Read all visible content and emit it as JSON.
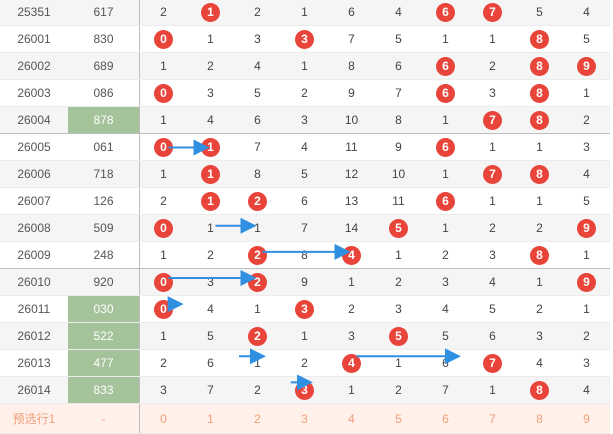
{
  "colors": {
    "ball": "#e8443a",
    "highlight": "#a5c39a",
    "arrow": "#2f8fe0",
    "prediction_text": "#f0a07a"
  },
  "rows": [
    {
      "issue": "25351",
      "num": "617",
      "digits": [
        "2",
        "1",
        "2",
        "1",
        "6",
        "4",
        "6",
        "7",
        "5",
        "4"
      ],
      "balls": [
        1,
        6,
        7
      ]
    },
    {
      "issue": "26001",
      "num": "830",
      "digits": [
        "0",
        "1",
        "3",
        "3",
        "7",
        "5",
        "1",
        "1",
        "8",
        "5"
      ],
      "balls": [
        0,
        3,
        8
      ]
    },
    {
      "issue": "26002",
      "num": "689",
      "digits": [
        "1",
        "2",
        "4",
        "1",
        "8",
        "6",
        "6",
        "2",
        "8",
        "9"
      ],
      "balls": [
        6,
        8,
        9
      ]
    },
    {
      "issue": "26003",
      "num": "086",
      "digits": [
        "0",
        "3",
        "5",
        "2",
        "9",
        "7",
        "6",
        "3",
        "8",
        "1"
      ],
      "balls": [
        0,
        6,
        8
      ]
    },
    {
      "issue": "26004",
      "num": "878",
      "hl": true,
      "digits": [
        "1",
        "4",
        "6",
        "3",
        "10",
        "8",
        "1",
        "7",
        "8",
        "2"
      ],
      "balls": [
        7,
        8
      ]
    },
    {
      "issue": "26005",
      "num": "061",
      "digits": [
        "0",
        "1",
        "7",
        "4",
        "11",
        "9",
        "6",
        "1",
        "1",
        "3"
      ],
      "balls": [
        0,
        1,
        6
      ]
    },
    {
      "issue": "26006",
      "num": "718",
      "digits": [
        "1",
        "1",
        "8",
        "5",
        "12",
        "10",
        "1",
        "7",
        "8",
        "4"
      ],
      "balls": [
        1,
        7,
        8
      ]
    },
    {
      "issue": "26007",
      "num": "126",
      "digits": [
        "2",
        "1",
        "2",
        "6",
        "13",
        "11",
        "6",
        "1",
        "1",
        "5"
      ],
      "balls": [
        1,
        2,
        6
      ]
    },
    {
      "issue": "26008",
      "num": "509",
      "digits": [
        "0",
        "1",
        "1",
        "7",
        "14",
        "5",
        "1",
        "2",
        "2",
        "9"
      ],
      "balls": [
        0,
        5,
        9
      ]
    },
    {
      "issue": "26009",
      "num": "248",
      "digits": [
        "1",
        "2",
        "2",
        "8",
        "4",
        "1",
        "2",
        "3",
        "8",
        "1"
      ],
      "balls": [
        2,
        4,
        8
      ]
    },
    {
      "issue": "26010",
      "num": "920",
      "digits": [
        "0",
        "3",
        "2",
        "9",
        "1",
        "2",
        "3",
        "4",
        "1",
        "9"
      ],
      "balls": [
        0,
        2,
        9
      ]
    },
    {
      "issue": "26011",
      "num": "030",
      "hl": true,
      "digits": [
        "0",
        "4",
        "1",
        "3",
        "2",
        "3",
        "4",
        "5",
        "2",
        "1"
      ],
      "balls": [
        0,
        3
      ]
    },
    {
      "issue": "26012",
      "num": "522",
      "hl": true,
      "digits": [
        "1",
        "5",
        "2",
        "1",
        "3",
        "5",
        "5",
        "6",
        "3",
        "2"
      ],
      "balls": [
        2,
        5
      ]
    },
    {
      "issue": "26013",
      "num": "477",
      "hl": true,
      "digits": [
        "2",
        "6",
        "1",
        "2",
        "4",
        "1",
        "6",
        "7",
        "4",
        "3"
      ],
      "balls": [
        4,
        7
      ]
    },
    {
      "issue": "26014",
      "num": "833",
      "hl": true,
      "digits": [
        "3",
        "7",
        "2",
        "3",
        "1",
        "2",
        "7",
        "1",
        "8",
        "4"
      ],
      "balls": [
        3,
        8
      ]
    }
  ],
  "prediction": {
    "label": "预选行1",
    "num": "-",
    "digits": [
      "0",
      "1",
      "2",
      "3",
      "4",
      "5",
      "6",
      "7",
      "8",
      "9"
    ]
  },
  "arrows": [
    {
      "from": [
        5,
        0
      ],
      "to": [
        5,
        1
      ]
    },
    {
      "from": [
        8,
        1
      ],
      "to": [
        8,
        2
      ]
    },
    {
      "from": [
        9,
        2
      ],
      "to": [
        9,
        4
      ]
    },
    {
      "from": [
        10,
        0
      ],
      "to": [
        10,
        2
      ]
    },
    {
      "from": [
        11,
        0
      ],
      "to": [
        11,
        0.45
      ]
    },
    {
      "from": [
        13,
        1.5
      ],
      "to": [
        13,
        2.2
      ]
    },
    {
      "from": [
        13,
        4
      ],
      "to": [
        13,
        6.35
      ]
    },
    {
      "from": [
        14,
        2.6
      ],
      "to": [
        14,
        3.2
      ]
    }
  ]
}
